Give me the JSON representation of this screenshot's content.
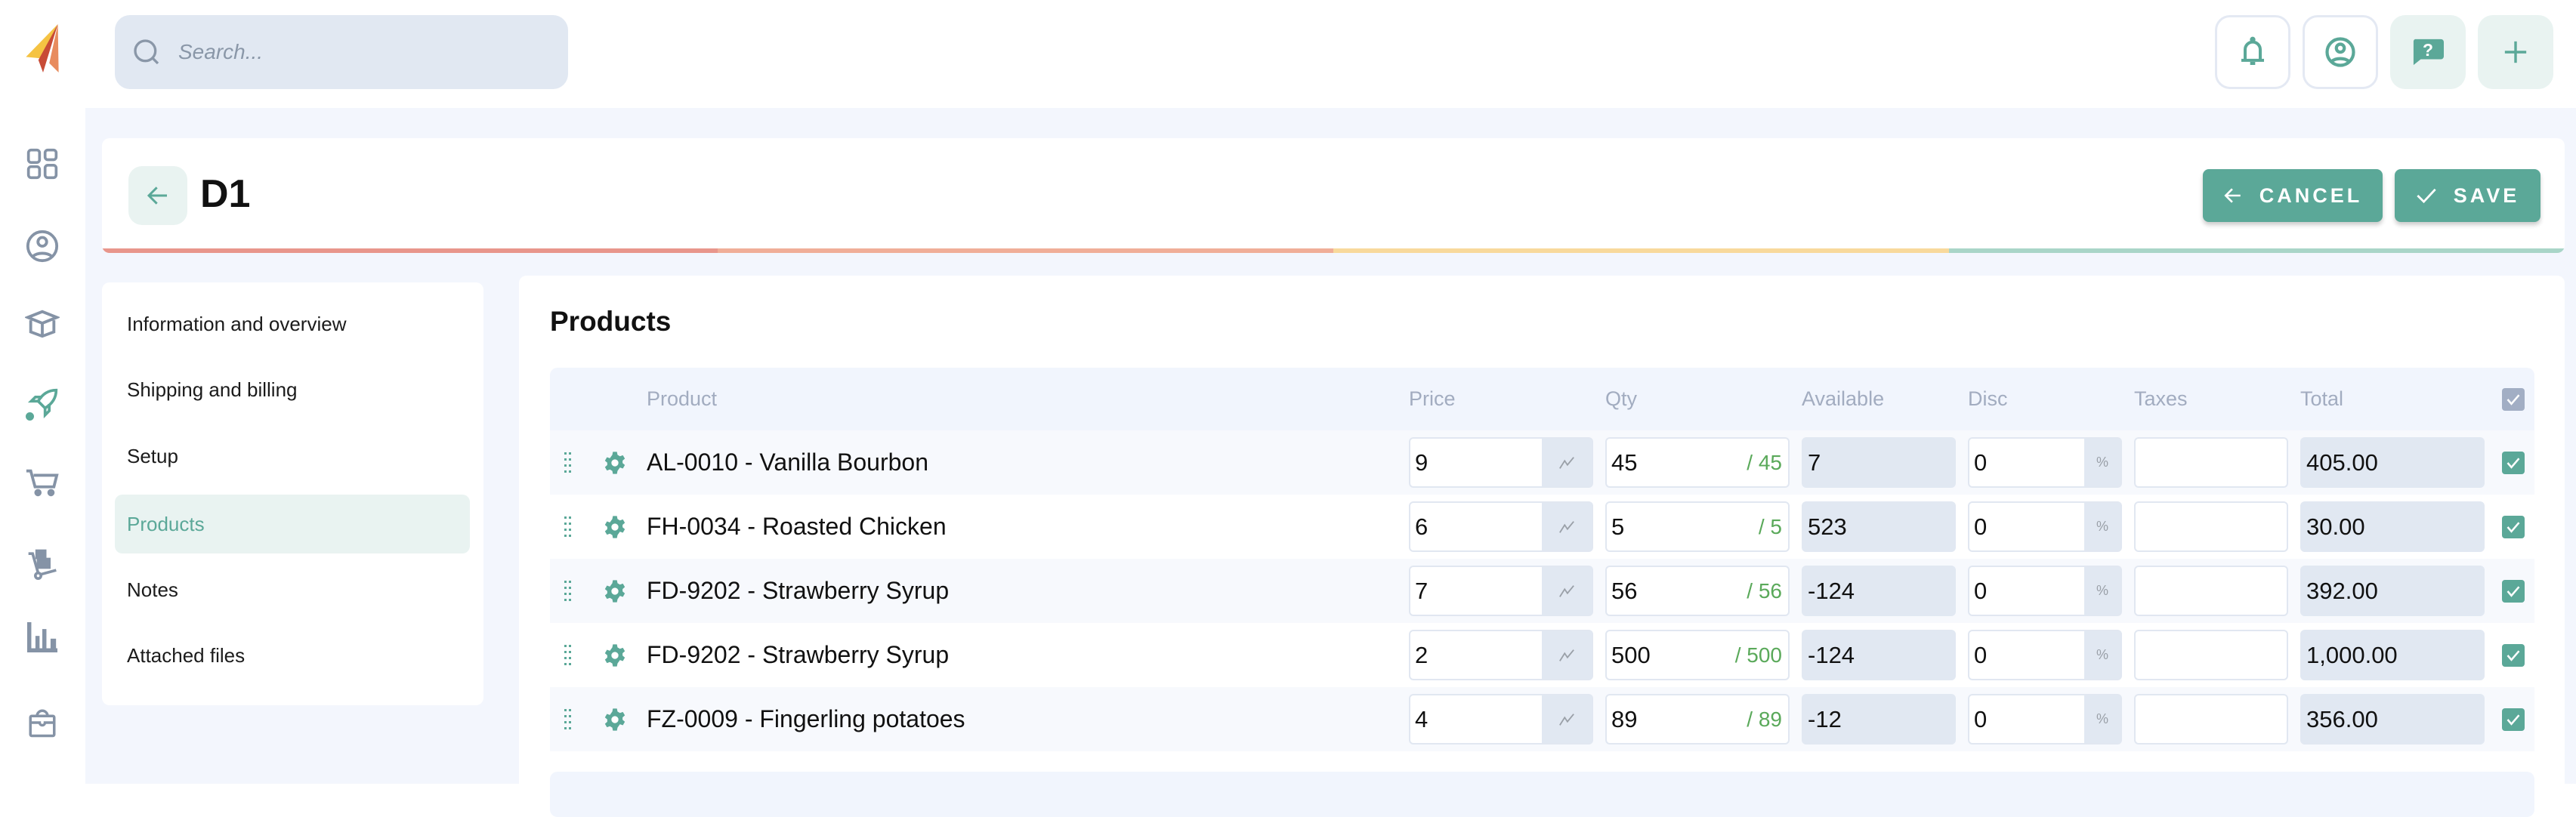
{
  "topbar": {
    "search_placeholder": "Search...",
    "icons": [
      "bell-icon",
      "user-circle-icon",
      "help-chat-icon",
      "plus-icon"
    ]
  },
  "sidebar": {
    "icons": [
      "grid-icon",
      "user-icon",
      "box-icon",
      "rocket-icon",
      "cart-icon",
      "hand-truck-icon",
      "bar-chart-icon",
      "bag-icon"
    ],
    "active": "rocket-icon"
  },
  "header": {
    "title": "D1",
    "cancel_label": "CANCEL",
    "save_label": "SAVE",
    "progress_colors": [
      "#e8968c",
      "#f0ae98",
      "#f8d99c",
      "#a9d5c8"
    ]
  },
  "nav": {
    "items": [
      {
        "label": "Information and overview"
      },
      {
        "label": "Shipping and billing"
      },
      {
        "label": "Setup"
      },
      {
        "label": "Products",
        "active": true
      },
      {
        "label": "Notes"
      },
      {
        "label": "Attached files"
      }
    ]
  },
  "products": {
    "title": "Products",
    "columns": {
      "product": "Product",
      "price": "Price",
      "qty": "Qty",
      "available": "Available",
      "disc": "Disc",
      "taxes": "Taxes",
      "total": "Total"
    },
    "disc_unit": "%",
    "rows": [
      {
        "product": "AL-0010 - Vanilla Bourbon",
        "price": "9",
        "qty": "45",
        "qty_max": "/ 45",
        "available": "7",
        "disc": "0",
        "taxes": "",
        "total": "405.00",
        "checked": true
      },
      {
        "product": "FH-0034 - Roasted Chicken",
        "price": "6",
        "qty": "5",
        "qty_max": "/ 5",
        "available": "523",
        "disc": "0",
        "taxes": "",
        "total": "30.00",
        "checked": true
      },
      {
        "product": "FD-9202 - Strawberry Syrup",
        "price": "7",
        "qty": "56",
        "qty_max": "/ 56",
        "available": "-124",
        "disc": "0",
        "taxes": "",
        "total": "392.00",
        "checked": true
      },
      {
        "product": "FD-9202 - Strawberry Syrup",
        "price": "2",
        "qty": "500",
        "qty_max": "/ 500",
        "available": "-124",
        "disc": "0",
        "taxes": "",
        "total": "1,000.00",
        "checked": true
      },
      {
        "product": "FZ-0009 - Fingerling potatoes",
        "price": "4",
        "qty": "89",
        "qty_max": "/ 89",
        "available": "-12",
        "disc": "0",
        "taxes": "",
        "total": "356.00",
        "checked": true
      }
    ]
  },
  "colors": {
    "accent": "#5ba898",
    "accent_light": "#e9f3f1",
    "background": "#f3f6fd"
  }
}
